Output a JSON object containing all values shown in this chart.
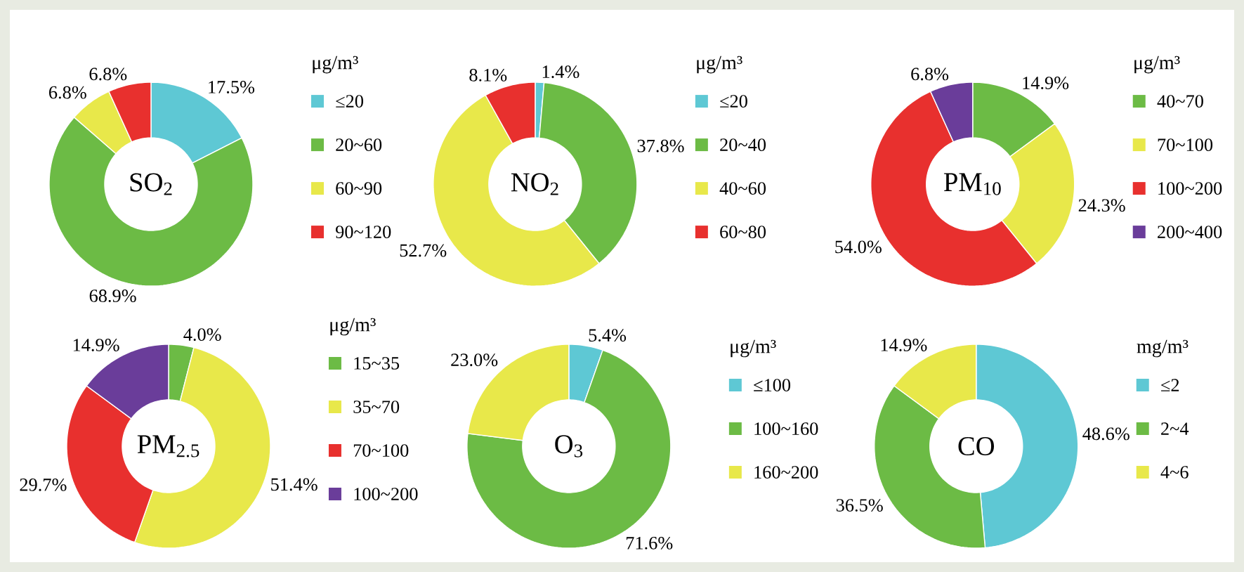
{
  "chart_data": [
    {
      "type": "donut",
      "title": "SO$_{2}$",
      "legend_title": "μg/m³",
      "legend": "right",
      "categories": [
        "≤20",
        "20~60",
        "60~90",
        "90~120"
      ],
      "values": [
        17.5,
        68.9,
        6.8,
        6.8
      ],
      "value_labels": [
        "17.5%",
        "68.9%",
        "6.8%",
        "6.8%"
      ],
      "colors": [
        "#5ec8d4",
        "#6cbb45",
        "#e8e84a",
        "#e8302e"
      ]
    },
    {
      "type": "donut",
      "title": "NO$_{2}$",
      "legend_title": "μg/m³",
      "legend": "right",
      "categories": [
        "≤20",
        "20~40",
        "40~60",
        "60~80"
      ],
      "values": [
        1.4,
        37.8,
        52.7,
        8.1
      ],
      "value_labels": [
        "1.4%",
        "37.8%",
        "52.7%",
        "8.1%"
      ],
      "colors": [
        "#5ec8d4",
        "#6cbb45",
        "#e8e84a",
        "#e8302e"
      ]
    },
    {
      "type": "donut",
      "title": "PM$_{10}$",
      "legend_title": "μg/m³",
      "legend": "right",
      "categories": [
        "40~70",
        "70~100",
        "100~200",
        "200~400"
      ],
      "values": [
        14.9,
        24.3,
        54.0,
        6.8
      ],
      "value_labels": [
        "14.9%",
        "24.3%",
        "54.0%",
        "6.8%"
      ],
      "colors": [
        "#6cbb45",
        "#e8e84a",
        "#e8302e",
        "#6a3d9a"
      ]
    },
    {
      "type": "donut",
      "title": "PM$_{2.5}$",
      "legend_title": "μg/m³",
      "legend": "right",
      "categories": [
        "15~35",
        "35~70",
        "70~100",
        "100~200"
      ],
      "values": [
        4.0,
        51.4,
        29.7,
        14.9
      ],
      "value_labels": [
        "4.0%",
        "51.4%",
        "29.7%",
        "14.9%"
      ],
      "colors": [
        "#6cbb45",
        "#e8e84a",
        "#e8302e",
        "#6a3d9a"
      ]
    },
    {
      "type": "donut",
      "title": "O$_{3}$",
      "legend_title": "μg/m³",
      "legend": "right",
      "categories": [
        "≤100",
        "100~160",
        "160~200"
      ],
      "values": [
        5.4,
        71.6,
        23.0
      ],
      "value_labels": [
        "5.4%",
        "71.6%",
        "23.0%"
      ],
      "colors": [
        "#5ec8d4",
        "#6cbb45",
        "#e8e84a"
      ]
    },
    {
      "type": "donut",
      "title": "CO",
      "legend_title": "mg/m³",
      "legend": "right",
      "categories": [
        "≤2",
        "2~4",
        "4~6"
      ],
      "values": [
        48.6,
        36.5,
        14.9
      ],
      "value_labels": [
        "48.6%",
        "36.5%",
        "14.9%"
      ],
      "colors": [
        "#5ec8d4",
        "#6cbb45",
        "#e8e84a"
      ]
    }
  ]
}
